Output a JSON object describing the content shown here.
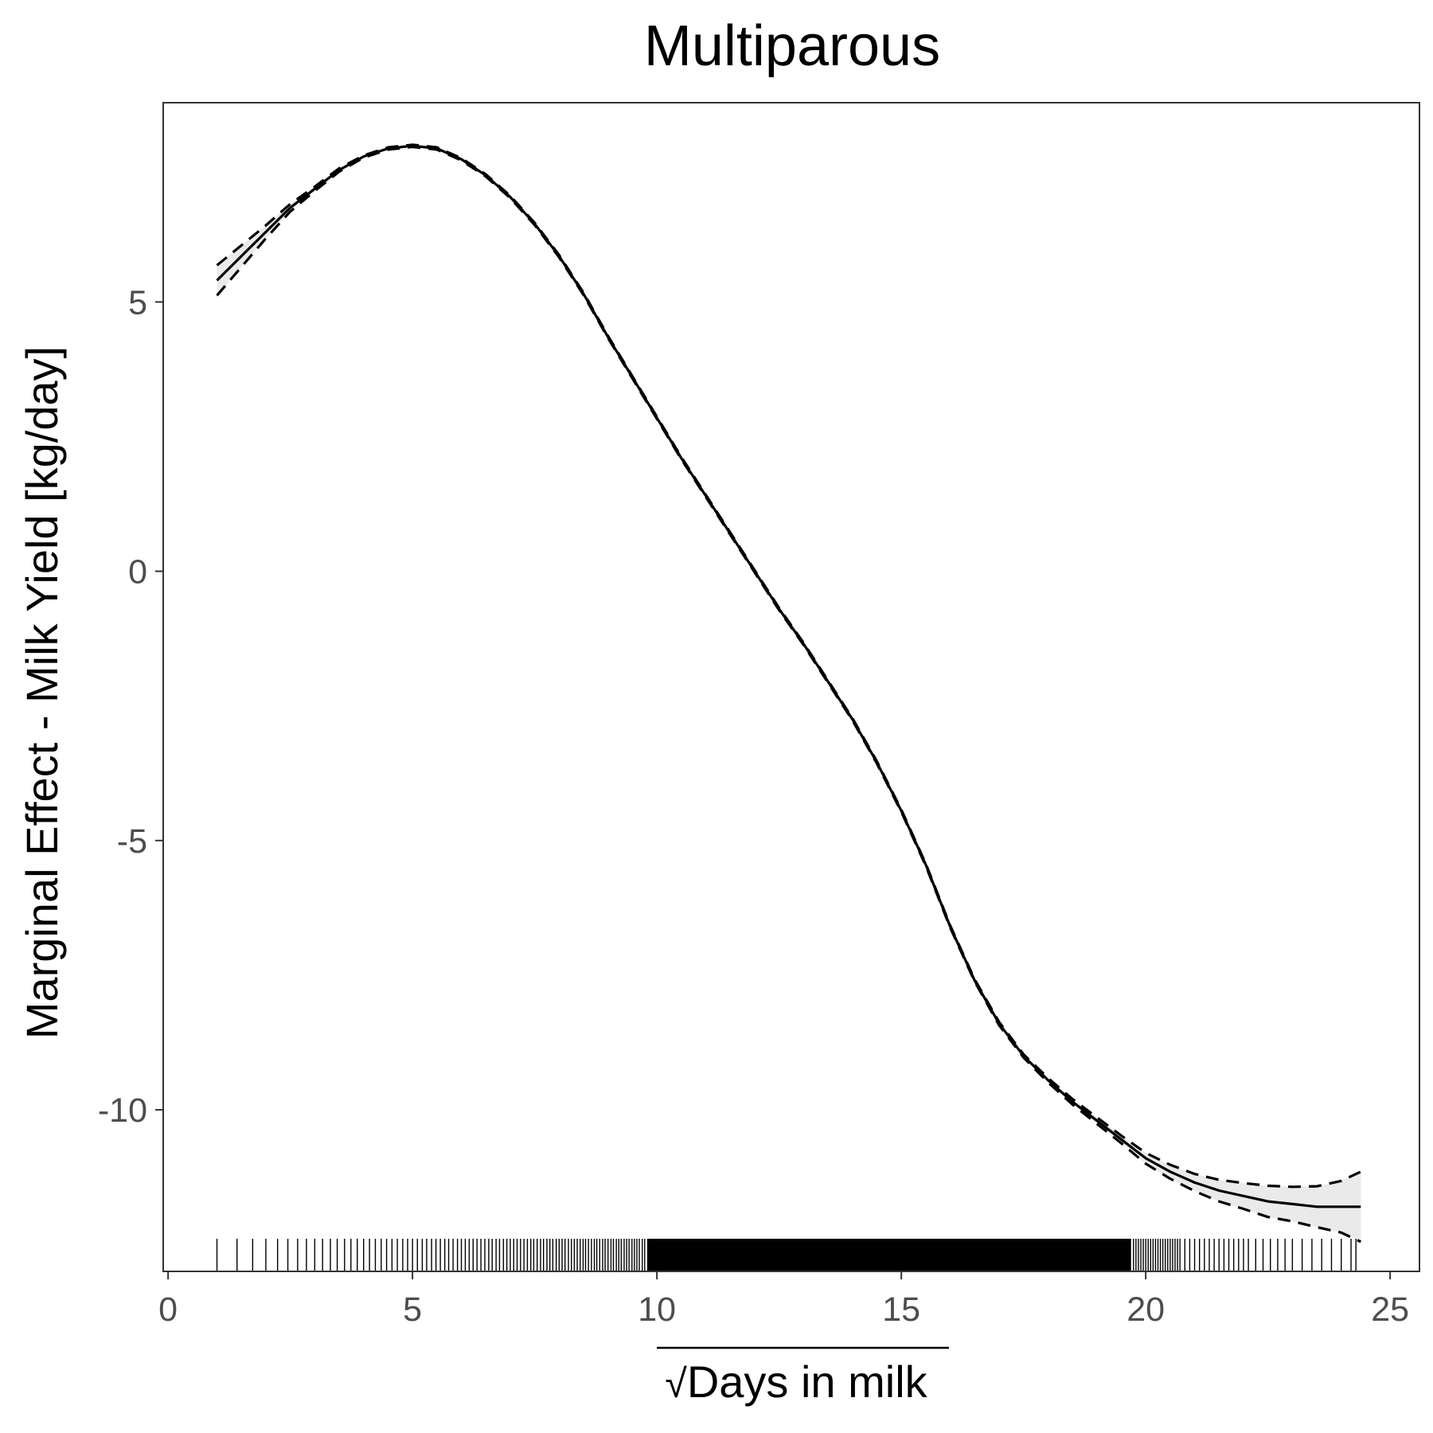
{
  "chart_data": {
    "type": "line",
    "title": "Multiparous",
    "xlabel": "Days in milk",
    "xlabel_prefix": "√",
    "ylabel": "Marginal Effect - Milk Yield [kg/day]",
    "xlim": [
      -0.1,
      25.6
    ],
    "ylim": [
      -13.0,
      8.7
    ],
    "x_ticks": [
      0,
      5,
      10,
      15,
      20,
      25
    ],
    "y_ticks": [
      -10,
      -5,
      0,
      5
    ],
    "grid": false,
    "legend": "none",
    "colors": {
      "line": "#000000",
      "band": "#e6e6e6",
      "panel_border": "#333333",
      "tick_label": "#4d4d4d"
    },
    "series": [
      {
        "style": "solid",
        "x": [
          1.0,
          1.5,
          2.0,
          2.5,
          3.0,
          3.5,
          4.0,
          4.5,
          5.0,
          5.5,
          6.0,
          6.5,
          7.0,
          7.5,
          8.0,
          8.5,
          9.0,
          9.5,
          10.0,
          10.5,
          11.0,
          11.5,
          12.0,
          12.5,
          13.0,
          13.5,
          14.0,
          14.5,
          15.0,
          15.5,
          16.0,
          16.5,
          17.0,
          17.5,
          18.0,
          18.5,
          19.0,
          19.5,
          20.0,
          20.5,
          21.0,
          21.5,
          22.0,
          22.5,
          23.0,
          23.5,
          24.0,
          24.4
        ],
        "y": [
          5.4,
          5.85,
          6.3,
          6.75,
          7.1,
          7.45,
          7.7,
          7.85,
          7.9,
          7.85,
          7.65,
          7.35,
          6.95,
          6.45,
          5.85,
          5.15,
          4.35,
          3.6,
          2.85,
          2.1,
          1.4,
          0.7,
          0.0,
          -0.7,
          -1.35,
          -2.05,
          -2.75,
          -3.55,
          -4.45,
          -5.45,
          -6.6,
          -7.6,
          -8.4,
          -9.0,
          -9.45,
          -9.85,
          -10.2,
          -10.55,
          -10.9,
          -11.15,
          -11.35,
          -11.5,
          -11.6,
          -11.7,
          -11.75,
          -11.8,
          -11.8,
          -11.8
        ]
      },
      {
        "style": "dashed",
        "x": [
          1.0,
          1.5,
          2.0,
          2.5,
          3.0,
          3.5,
          4.0,
          4.5,
          5.0,
          5.5,
          6.0,
          6.5,
          7.0,
          7.5,
          8.0,
          8.5,
          9.0,
          9.5,
          10.0,
          10.5,
          11.0,
          11.5,
          12.0,
          12.5,
          13.0,
          13.5,
          14.0,
          14.5,
          15.0,
          15.5,
          16.0,
          16.5,
          17.0,
          17.5,
          18.0,
          18.5,
          19.0,
          19.5,
          20.0,
          20.5,
          21.0,
          21.5,
          22.0,
          22.5,
          23.0,
          23.5,
          24.0,
          24.4
        ],
        "y": [
          5.68,
          6.05,
          6.42,
          6.82,
          7.14,
          7.48,
          7.72,
          7.87,
          7.92,
          7.87,
          7.67,
          7.37,
          6.97,
          6.47,
          5.87,
          5.17,
          4.37,
          3.62,
          2.87,
          2.12,
          1.42,
          0.72,
          0.02,
          -0.68,
          -1.33,
          -2.03,
          -2.73,
          -3.53,
          -4.43,
          -5.43,
          -6.58,
          -7.58,
          -8.37,
          -8.97,
          -9.41,
          -9.8,
          -10.14,
          -10.48,
          -10.8,
          -11.02,
          -11.19,
          -11.3,
          -11.36,
          -11.41,
          -11.43,
          -11.42,
          -11.32,
          -11.15
        ]
      },
      {
        "style": "dashed",
        "x": [
          1.0,
          1.5,
          2.0,
          2.5,
          3.0,
          3.5,
          4.0,
          4.5,
          5.0,
          5.5,
          6.0,
          6.5,
          7.0,
          7.5,
          8.0,
          8.5,
          9.0,
          9.5,
          10.0,
          10.5,
          11.0,
          11.5,
          12.0,
          12.5,
          13.0,
          13.5,
          14.0,
          14.5,
          15.0,
          15.5,
          16.0,
          16.5,
          17.0,
          17.5,
          18.0,
          18.5,
          19.0,
          19.5,
          20.0,
          20.5,
          21.0,
          21.5,
          22.0,
          22.5,
          23.0,
          23.5,
          24.0,
          24.4
        ],
        "y": [
          5.12,
          5.65,
          6.18,
          6.68,
          7.06,
          7.42,
          7.68,
          7.83,
          7.88,
          7.83,
          7.63,
          7.33,
          6.93,
          6.43,
          5.83,
          5.13,
          4.33,
          3.58,
          2.83,
          2.08,
          1.38,
          0.68,
          -0.02,
          -0.72,
          -1.37,
          -2.07,
          -2.77,
          -3.57,
          -4.47,
          -5.47,
          -6.62,
          -7.62,
          -8.43,
          -9.03,
          -9.49,
          -9.9,
          -10.26,
          -10.62,
          -11.0,
          -11.28,
          -11.51,
          -11.7,
          -11.84,
          -11.99,
          -12.07,
          -12.18,
          -12.28,
          -12.45
        ]
      }
    ],
    "rug": [
      1.0,
      1.41,
      1.73,
      2.0,
      2.24,
      2.45,
      2.65,
      2.83,
      3.0,
      3.16,
      3.32,
      3.46,
      3.61,
      3.74,
      3.87,
      4.0,
      4.12,
      4.24,
      4.36,
      4.47,
      4.58,
      4.69,
      4.8,
      4.9,
      5.0,
      5.1,
      5.2,
      5.29,
      5.39,
      5.48,
      5.57,
      5.66,
      5.74,
      5.83,
      5.92,
      6.0,
      6.08,
      6.16,
      6.24,
      6.32,
      6.4,
      6.48,
      6.56,
      6.63,
      6.71,
      6.78,
      6.86,
      6.93,
      7.0,
      7.07,
      7.14,
      7.21,
      7.28,
      7.35,
      7.42,
      7.48,
      7.55,
      7.62,
      7.68,
      7.75,
      7.81,
      7.87,
      7.94,
      8.0,
      8.06,
      8.12,
      8.19,
      8.25,
      8.31,
      8.37,
      8.43,
      8.49,
      8.54,
      8.6,
      8.66,
      8.72,
      8.77,
      8.83,
      8.89,
      8.94,
      9.0,
      9.06,
      9.11,
      9.17,
      9.22,
      9.27,
      9.33,
      9.38,
      9.43,
      9.49,
      9.54,
      9.59,
      9.64,
      9.7,
      9.75,
      19.75,
      19.8,
      19.85,
      19.9,
      19.95,
      20.0,
      20.05,
      20.1,
      20.15,
      20.2,
      20.25,
      20.3,
      20.35,
      20.4,
      20.45,
      20.5,
      20.55,
      20.6,
      20.65,
      20.7,
      20.8,
      20.9,
      21.0,
      21.1,
      21.2,
      21.3,
      21.4,
      21.5,
      21.6,
      21.7,
      21.8,
      21.9,
      22.0,
      22.1,
      22.25,
      22.4,
      22.55,
      22.7,
      22.85,
      23.0,
      23.2,
      23.4,
      23.6,
      23.8,
      24.0,
      24.2,
      24.3
    ],
    "rug_dense_range": [
      9.8,
      19.7
    ]
  }
}
